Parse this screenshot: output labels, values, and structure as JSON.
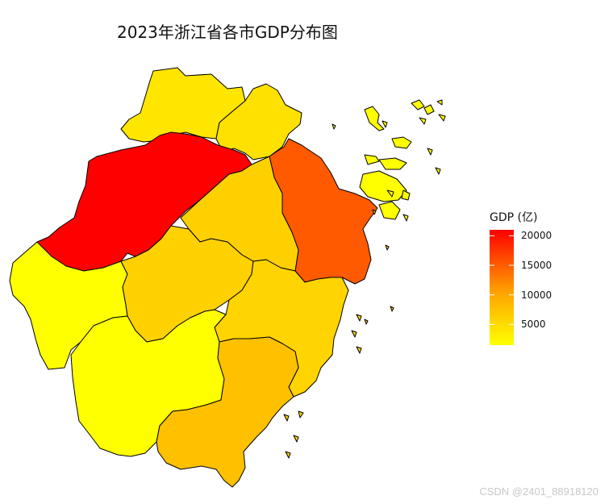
{
  "title": "2023年浙江省各市GDP分布图",
  "legend": {
    "title": "GDP (亿)",
    "ticks": [
      5000,
      10000,
      15000,
      20000
    ],
    "range": [
      1500,
      21000
    ],
    "color_low": "#ffff00",
    "color_mid": "#ffa500",
    "color_high": "#ff0000"
  },
  "regions": [
    {
      "id": "hangzhou",
      "fill": "#ff0000"
    },
    {
      "id": "ningbo",
      "fill": "#ff5a00"
    },
    {
      "id": "huzhou",
      "fill": "#ffe600"
    },
    {
      "id": "jiaxing",
      "fill": "#ffe100"
    },
    {
      "id": "shaoxing",
      "fill": "#ffd000"
    },
    {
      "id": "jinhua",
      "fill": "#ffd100"
    },
    {
      "id": "taizhou",
      "fill": "#ffd400"
    },
    {
      "id": "wenzhou",
      "fill": "#ffc000"
    },
    {
      "id": "quzhou",
      "fill": "#ffff00"
    },
    {
      "id": "lishui",
      "fill": "#ffff00"
    },
    {
      "id": "zhoushan",
      "fill": "#ffff00"
    }
  ],
  "watermark": "CSDN @2401_88918120"
}
